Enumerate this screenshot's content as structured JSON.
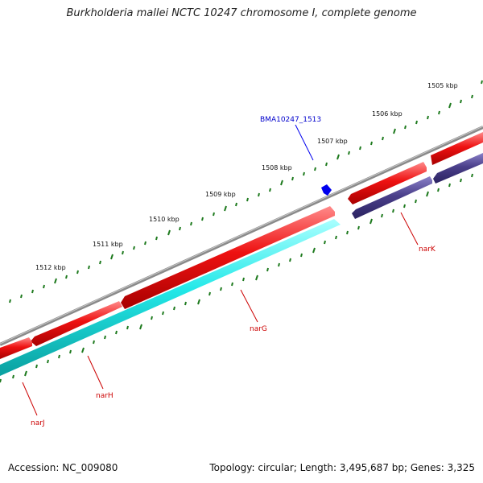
{
  "title": "Burkholderia mallei NCTC 10247 chromosome I, complete genome",
  "accession": "Accession: NC_009080",
  "topology": "Topology: circular; Length: 3,495,687 bp; Genes: 3,325",
  "kbp_labels": [
    "1505 kbp",
    "1506 kbp",
    "1507 kbp",
    "1508 kbp",
    "1509 kbp",
    "1510 kbp",
    "1511 kbp",
    "1512 kbp"
  ],
  "genes": {
    "narK": "narK",
    "narG": "narG",
    "narH": "narH",
    "narJ": "narJ",
    "marker": "BMA10247_1513"
  },
  "colors": {
    "backbone": "#8a8a8a",
    "forward_cds": "#ee1111",
    "reverse_cds_cyan": "#22e8e8",
    "reverse_cds_purple": "#4a3f8a",
    "tick": "#1e7a1e",
    "gene_label": "#cc0000",
    "marker": "#0000ee"
  }
}
